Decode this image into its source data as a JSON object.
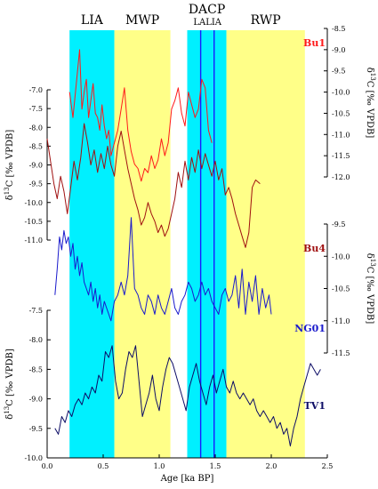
{
  "chart_data": {
    "type": "line",
    "xlabel": "Age [ka BP]",
    "xlim": [
      0.0,
      2.5
    ],
    "x_ticks": [
      "0.0",
      "0.5",
      "1.0",
      "1.5",
      "2.0",
      "2.5"
    ],
    "x_tick_values": [
      0.0,
      0.5,
      1.0,
      1.5,
      2.0,
      2.5
    ],
    "periods": [
      {
        "label": "LIA",
        "start": 0.2,
        "end": 0.6,
        "color": "#00f0ff"
      },
      {
        "label": "MWP",
        "start": 0.6,
        "end": 1.1,
        "color": "#ffff88"
      },
      {
        "label": "DACP",
        "start": 1.25,
        "end": 1.6,
        "color": "#00f0ff"
      },
      {
        "label": "RWP",
        "start": 1.6,
        "end": 2.3,
        "color": "#ffff88"
      }
    ],
    "lalia": {
      "label": "LALIA",
      "start": 1.37,
      "end": 1.49,
      "color": "#1a1aff"
    },
    "axes": [
      {
        "id": "bu1",
        "side": "right",
        "label": "δ13C [‰ VPDB]",
        "label_parts": [
          "δ",
          "13",
          "C [‰ VPDB]"
        ],
        "ticks": [
          "-8.5",
          "-9.0",
          "-9.5",
          "-10.0",
          "-10.5",
          "-11.0",
          "-11.5",
          "-12.0"
        ],
        "tick_values": [
          -8.5,
          -9.0,
          -9.5,
          -10.0,
          -10.5,
          -11.0,
          -11.5,
          -12.0
        ]
      },
      {
        "id": "bu4",
        "side": "left",
        "label": "δ13C [‰ VPDB]",
        "label_parts": [
          "δ",
          "13",
          "C [‰ VPDB]"
        ],
        "ticks": [
          "-7.0",
          "-7.5",
          "-8.0",
          "-8.5",
          "-9.0",
          "-9.5",
          "-10.0",
          "-10.5",
          "-11.0"
        ],
        "tick_values": [
          -7.0,
          -7.5,
          -8.0,
          -8.5,
          -9.0,
          -9.5,
          -10.0,
          -10.5,
          -11.0
        ]
      },
      {
        "id": "ng01",
        "side": "right",
        "label": "δ13C [‰ VPDB]",
        "label_parts": [
          "δ",
          "13",
          "C [‰ VPDB]"
        ],
        "ticks": [
          "-9.5",
          "-10.0",
          "-10.5",
          "-11.0",
          "-11.5"
        ],
        "tick_values": [
          -9.5,
          -10.0,
          -10.5,
          -11.0,
          -11.5
        ]
      },
      {
        "id": "tv1",
        "side": "left",
        "label": "δ13C [‰ VPDB]",
        "label_parts": [
          "δ",
          "13",
          "C [‰ VPDB]"
        ],
        "ticks": [
          "-7.5",
          "-8.0",
          "-8.5",
          "-9.0",
          "-9.5",
          "-10.0"
        ],
        "tick_values": [
          -7.5,
          -8.0,
          -8.5,
          -9.0,
          -9.5,
          -10.0
        ]
      }
    ],
    "series": [
      {
        "name": "Bu1",
        "axis": "bu1",
        "color": "#ff1a1a",
        "x": [
          0.2,
          0.23,
          0.26,
          0.29,
          0.31,
          0.33,
          0.35,
          0.37,
          0.39,
          0.41,
          0.43,
          0.45,
          0.47,
          0.49,
          0.51,
          0.53,
          0.55,
          0.57,
          0.6,
          0.63,
          0.66,
          0.69,
          0.72,
          0.75,
          0.78,
          0.81,
          0.84,
          0.87,
          0.9,
          0.93,
          0.96,
          0.99,
          1.02,
          1.05,
          1.08,
          1.11,
          1.14,
          1.17,
          1.2,
          1.23,
          1.26,
          1.29,
          1.32,
          1.35,
          1.38,
          1.41,
          1.44,
          1.47
        ],
        "y": [
          -10.0,
          -10.6,
          -9.8,
          -9.0,
          -10.4,
          -10.0,
          -9.7,
          -10.6,
          -10.2,
          -9.8,
          -10.5,
          -10.6,
          -10.9,
          -10.3,
          -10.8,
          -11.1,
          -10.9,
          -11.5,
          -11.2,
          -10.9,
          -10.4,
          -9.9,
          -10.9,
          -11.4,
          -11.7,
          -11.8,
          -12.1,
          -11.8,
          -11.9,
          -11.5,
          -11.8,
          -11.6,
          -11.1,
          -11.5,
          -11.2,
          -10.4,
          -10.2,
          -9.9,
          -10.5,
          -10.8,
          -10.0,
          -10.3,
          -10.6,
          -10.4,
          -9.7,
          -9.9,
          -10.9,
          -11.2
        ]
      },
      {
        "name": "Bu4",
        "axis": "bu4",
        "color": "#a01010",
        "x": [
          0.0,
          0.03,
          0.06,
          0.09,
          0.12,
          0.15,
          0.18,
          0.21,
          0.24,
          0.27,
          0.3,
          0.33,
          0.36,
          0.39,
          0.42,
          0.45,
          0.48,
          0.51,
          0.54,
          0.57,
          0.6,
          0.63,
          0.66,
          0.69,
          0.72,
          0.75,
          0.78,
          0.81,
          0.84,
          0.87,
          0.9,
          0.93,
          0.96,
          0.99,
          1.02,
          1.05,
          1.08,
          1.11,
          1.14,
          1.17,
          1.2,
          1.23,
          1.26,
          1.29,
          1.32,
          1.35,
          1.38,
          1.41,
          1.44,
          1.47,
          1.5,
          1.53,
          1.56,
          1.59,
          1.62,
          1.65,
          1.68,
          1.71,
          1.74,
          1.77,
          1.8,
          1.83,
          1.86,
          1.9
        ],
        "y": [
          -8.3,
          -8.9,
          -9.5,
          -9.9,
          -9.3,
          -9.7,
          -10.3,
          -9.6,
          -8.9,
          -9.4,
          -8.8,
          -7.9,
          -8.4,
          -9.0,
          -8.6,
          -9.2,
          -8.7,
          -9.1,
          -8.5,
          -9.0,
          -9.3,
          -8.5,
          -8.1,
          -8.6,
          -9.1,
          -9.5,
          -9.9,
          -10.2,
          -10.6,
          -10.4,
          -10.0,
          -10.3,
          -10.5,
          -10.8,
          -10.6,
          -10.9,
          -10.7,
          -10.3,
          -9.9,
          -9.2,
          -9.6,
          -8.9,
          -9.4,
          -8.8,
          -9.2,
          -8.6,
          -9.1,
          -8.7,
          -9.0,
          -9.3,
          -8.9,
          -9.4,
          -9.1,
          -9.8,
          -9.6,
          -9.9,
          -10.3,
          -10.6,
          -10.9,
          -11.2,
          -10.8,
          -9.6,
          -9.4,
          -9.5
        ]
      },
      {
        "name": "NG01",
        "axis": "ng01",
        "color": "#1a1acc",
        "x": [
          0.07,
          0.09,
          0.11,
          0.13,
          0.15,
          0.17,
          0.19,
          0.21,
          0.23,
          0.25,
          0.27,
          0.29,
          0.31,
          0.33,
          0.35,
          0.37,
          0.39,
          0.41,
          0.43,
          0.45,
          0.47,
          0.49,
          0.51,
          0.53,
          0.55,
          0.57,
          0.6,
          0.63,
          0.66,
          0.69,
          0.72,
          0.75,
          0.78,
          0.81,
          0.84,
          0.87,
          0.9,
          0.93,
          0.96,
          0.99,
          1.02,
          1.05,
          1.08,
          1.11,
          1.14,
          1.17,
          1.2,
          1.23,
          1.26,
          1.29,
          1.32,
          1.35,
          1.38,
          1.41,
          1.44,
          1.47,
          1.5,
          1.53,
          1.56,
          1.59,
          1.62,
          1.65,
          1.68,
          1.71,
          1.74,
          1.77,
          1.8,
          1.83,
          1.86,
          1.89,
          1.92,
          1.95,
          1.98,
          2.0
        ],
        "y": [
          -10.6,
          -10.2,
          -9.7,
          -9.9,
          -9.6,
          -9.8,
          -9.7,
          -10.0,
          -9.8,
          -10.2,
          -10.0,
          -10.3,
          -10.1,
          -10.4,
          -10.5,
          -10.6,
          -10.4,
          -10.7,
          -10.5,
          -10.8,
          -10.6,
          -10.9,
          -10.7,
          -10.8,
          -10.9,
          -11.0,
          -10.7,
          -10.6,
          -10.4,
          -10.6,
          -10.3,
          -9.4,
          -10.5,
          -10.6,
          -10.8,
          -10.9,
          -10.6,
          -10.7,
          -10.9,
          -10.6,
          -10.8,
          -10.9,
          -10.7,
          -10.5,
          -10.8,
          -10.9,
          -10.7,
          -10.6,
          -10.4,
          -10.5,
          -10.7,
          -10.6,
          -10.4,
          -10.6,
          -10.5,
          -10.7,
          -10.8,
          -10.9,
          -10.6,
          -10.5,
          -10.7,
          -10.6,
          -10.3,
          -10.8,
          -10.2,
          -10.9,
          -10.4,
          -10.7,
          -10.3,
          -10.9,
          -10.5,
          -10.8,
          -10.6,
          -10.9
        ]
      },
      {
        "name": "TV1",
        "axis": "tv1",
        "color": "#0d0d66",
        "x": [
          0.07,
          0.1,
          0.13,
          0.16,
          0.19,
          0.22,
          0.25,
          0.28,
          0.31,
          0.34,
          0.37,
          0.4,
          0.43,
          0.46,
          0.49,
          0.52,
          0.55,
          0.58,
          0.61,
          0.64,
          0.67,
          0.7,
          0.73,
          0.76,
          0.79,
          0.82,
          0.85,
          0.88,
          0.91,
          0.94,
          0.97,
          1.0,
          1.03,
          1.06,
          1.09,
          1.12,
          1.15,
          1.18,
          1.21,
          1.24,
          1.27,
          1.3,
          1.33,
          1.36,
          1.39,
          1.42,
          1.45,
          1.48,
          1.51,
          1.54,
          1.57,
          1.6,
          1.63,
          1.66,
          1.69,
          1.72,
          1.75,
          1.78,
          1.81,
          1.84,
          1.87,
          1.9,
          1.93,
          1.96,
          1.99,
          2.02,
          2.05,
          2.08,
          2.11,
          2.14,
          2.17,
          2.2,
          2.23,
          2.26,
          2.29,
          2.32,
          2.35,
          2.38,
          2.41,
          2.44
        ],
        "y": [
          -9.5,
          -9.6,
          -9.3,
          -9.4,
          -9.2,
          -9.3,
          -9.1,
          -9.0,
          -9.1,
          -8.9,
          -9.0,
          -8.8,
          -8.9,
          -8.6,
          -8.7,
          -8.2,
          -8.3,
          -8.1,
          -8.7,
          -9.0,
          -8.9,
          -8.5,
          -8.2,
          -8.3,
          -8.1,
          -8.7,
          -9.3,
          -9.1,
          -8.9,
          -8.6,
          -9.0,
          -9.2,
          -8.8,
          -8.5,
          -8.3,
          -8.4,
          -8.6,
          -8.8,
          -9.0,
          -9.2,
          -8.8,
          -8.6,
          -8.4,
          -8.7,
          -8.9,
          -9.1,
          -8.8,
          -8.6,
          -8.9,
          -8.7,
          -8.5,
          -8.8,
          -8.9,
          -8.7,
          -8.9,
          -9.0,
          -8.9,
          -9.0,
          -9.1,
          -9.0,
          -9.2,
          -9.3,
          -9.2,
          -9.3,
          -9.4,
          -9.3,
          -9.5,
          -9.4,
          -9.6,
          -9.5,
          -9.8,
          -9.5,
          -9.3,
          -9.0,
          -8.8,
          -8.6,
          -8.4,
          -8.5,
          -8.6,
          -8.5
        ]
      }
    ]
  }
}
